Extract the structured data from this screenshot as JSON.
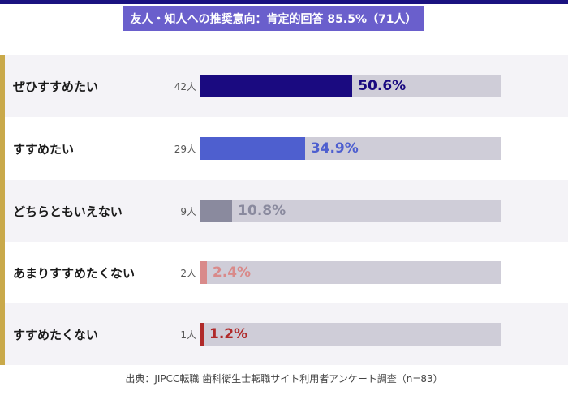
{
  "chart_data": {
    "type": "bar",
    "orientation": "horizontal",
    "title": "友人・知人への推奨意向：肯定的回答 85.5%（71人）",
    "categories": [
      "ぜひすすめたい",
      "すすめたい",
      "どちらともいえない",
      "あまりすすめたくない",
      "すすめたくない"
    ],
    "counts": [
      "42人",
      "29人",
      "9人",
      "2人",
      "1人"
    ],
    "values": [
      50.6,
      34.9,
      10.8,
      2.4,
      1.2
    ],
    "value_labels": [
      "50.6%",
      "34.9%",
      "10.8%",
      "2.4%",
      "1.2%"
    ],
    "colors": [
      "#1a0a80",
      "#4e5fcf",
      "#8a8a9e",
      "#d98a8a",
      "#b02a2a"
    ],
    "label_colors": [
      "#1a0a80",
      "#4e5fcf",
      "#8a8a9e",
      "#d98a8a",
      "#b02a2a"
    ],
    "xlim": [
      0,
      100
    ],
    "source": "出典：JIPCC転職 歯科衛生士転職サイト利用者アンケート調査（n=83）"
  },
  "colors": {
    "top_bar": "#1a1280",
    "title_bg": "#6a5fcc",
    "accent": "#c9a94a",
    "track": "#cfcdd8"
  }
}
